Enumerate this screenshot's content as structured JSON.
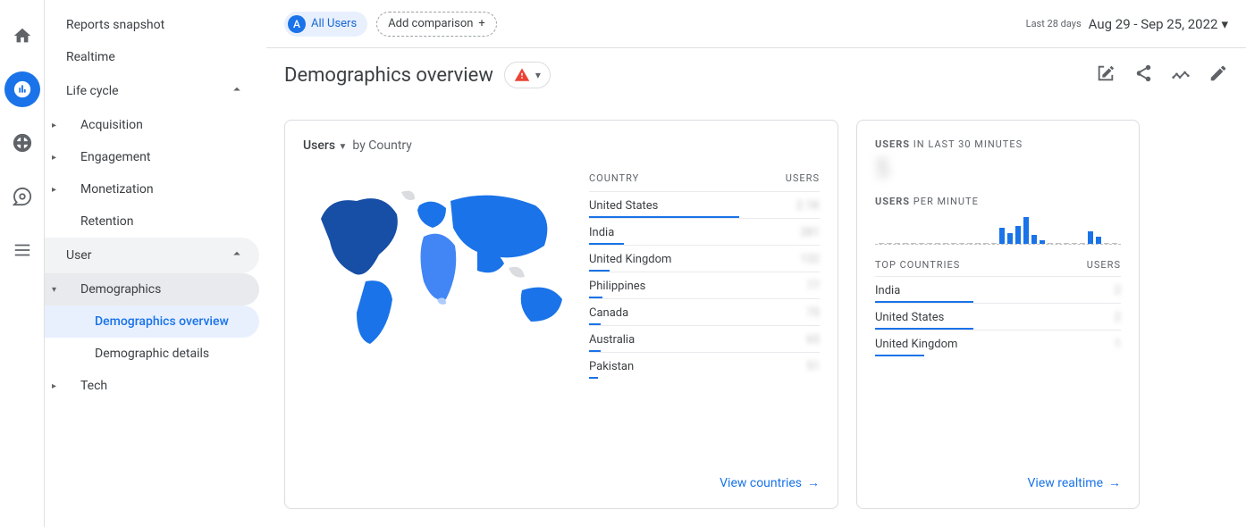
{
  "rail": {
    "items": [
      "home",
      "reports",
      "explore",
      "advertising",
      "configure"
    ],
    "active_index": 1
  },
  "sidebar": {
    "top_items": [
      {
        "label": "Reports snapshot"
      },
      {
        "label": "Realtime"
      }
    ],
    "groups": [
      {
        "label": "Life cycle",
        "expanded": true,
        "items": [
          {
            "label": "Acquisition",
            "has_children": true
          },
          {
            "label": "Engagement",
            "has_children": true
          },
          {
            "label": "Monetization",
            "has_children": true
          },
          {
            "label": "Retention",
            "has_children": false
          }
        ]
      },
      {
        "label": "User",
        "expanded": true,
        "selected_group": true,
        "items": [
          {
            "label": "Demographics",
            "expanded": true,
            "selected_parent": true,
            "children": [
              {
                "label": "Demographics overview",
                "selected": true
              },
              {
                "label": "Demographic details"
              }
            ]
          },
          {
            "label": "Tech",
            "has_children": true
          }
        ]
      }
    ]
  },
  "topbar": {
    "all_users_badge": "A",
    "all_users_label": "All Users",
    "add_comparison_label": "Add comparison",
    "period_label": "Last 28 days",
    "date_range": "Aug 29 - Sep 25, 2022"
  },
  "page": {
    "title": "Demographics overview"
  },
  "card_country": {
    "metric": "Users",
    "by_label": "by Country",
    "columns": [
      "COUNTRY",
      "USERS"
    ],
    "rows": [
      {
        "name": "United States",
        "value": "2.1K",
        "bar_pct": 65
      },
      {
        "name": "India",
        "value": "281",
        "bar_pct": 15
      },
      {
        "name": "United Kingdom",
        "value": "132",
        "bar_pct": 9
      },
      {
        "name": "Philippines",
        "value": "77",
        "bar_pct": 6
      },
      {
        "name": "Canada",
        "value": "75",
        "bar_pct": 5
      },
      {
        "name": "Australia",
        "value": "65",
        "bar_pct": 5
      },
      {
        "name": "Pakistan",
        "value": "51",
        "bar_pct": 4
      }
    ],
    "view_link": "View countries",
    "map_colors": {
      "active": "#1a73e8",
      "dark": "#174ea6",
      "mid": "#4285f4",
      "light": "#aecbfa",
      "empty": "#dadce0"
    }
  },
  "card_realtime": {
    "label_prefix": "USERS",
    "label_suffix": " IN LAST 30 MINUTES",
    "big_value": "5",
    "per_minute_prefix": "USERS",
    "per_minute_suffix": " PER MINUTE",
    "spark_heights": [
      0,
      0,
      0,
      0,
      0,
      0,
      0,
      0,
      0,
      0,
      0,
      0,
      0,
      0,
      0,
      18,
      12,
      20,
      30,
      10,
      4,
      0,
      0,
      0,
      0,
      0,
      14,
      8,
      0,
      0
    ],
    "columns": [
      "TOP COUNTRIES",
      "USERS"
    ],
    "rows": [
      {
        "name": "India",
        "value": "2",
        "bar_pct": 40
      },
      {
        "name": "United States",
        "value": "2",
        "bar_pct": 40
      },
      {
        "name": "United Kingdom",
        "value": "1",
        "bar_pct": 20
      }
    ],
    "view_link": "View realtime"
  },
  "colors": {
    "accent": "#1a73e8"
  }
}
